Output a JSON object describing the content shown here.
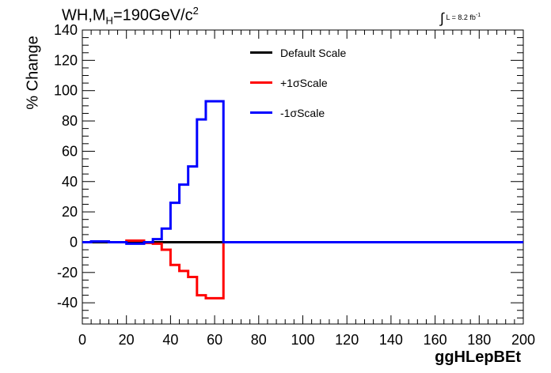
{
  "header": {
    "title_main": "WH,M",
    "title_sub": "H",
    "title_rest": "=190GeV/c",
    "title_sup": "2",
    "lumi_main": "L = 8.2 fb",
    "lumi_sup": "-1"
  },
  "chart_data": {
    "type": "line",
    "xlabel": "ggHLepBEt",
    "ylabel": "% Change",
    "xlim": [
      0,
      200
    ],
    "ylim": [
      -54,
      140
    ],
    "xticks": [
      0,
      20,
      40,
      60,
      80,
      100,
      120,
      140,
      160,
      180,
      200
    ],
    "yticks": [
      -40,
      -20,
      0,
      20,
      40,
      60,
      80,
      100,
      120,
      140
    ],
    "bin_width": 4,
    "bin_edges_start": 0,
    "grid": false,
    "legend_position": "top-center",
    "series": [
      {
        "name": "Default Scale",
        "color": "#000000",
        "values": [
          0,
          0,
          0,
          0,
          0,
          0,
          0,
          0,
          0,
          0,
          0,
          0,
          0,
          0,
          0,
          0,
          0,
          0,
          0,
          0,
          0,
          0,
          0,
          0,
          0,
          0,
          0,
          0,
          0,
          0,
          0,
          0,
          0,
          0,
          0,
          0,
          0,
          0,
          0,
          0,
          0,
          0,
          0,
          0,
          0,
          0,
          0,
          0,
          0,
          0
        ]
      },
      {
        "name": "+1σScale",
        "color": "#ff0000",
        "values": [
          0,
          0.5,
          0.5,
          0,
          0,
          1,
          1,
          -0.5,
          -1,
          -5,
          -15,
          -19,
          -23,
          -35,
          -37,
          -37,
          0,
          0,
          0,
          0,
          0,
          0,
          0,
          0,
          0,
          0,
          0,
          0,
          0,
          0,
          0,
          0,
          0,
          0,
          0,
          0,
          0,
          0,
          0,
          0,
          0,
          0,
          0,
          0,
          0,
          0,
          0,
          0,
          0,
          0
        ]
      },
      {
        "name": "-1σScale",
        "color": "#0000ff",
        "values": [
          0,
          0.5,
          0.5,
          0,
          0,
          -1,
          -1,
          0,
          2,
          9,
          26,
          38,
          50,
          81,
          93,
          93,
          0,
          0,
          0,
          0,
          0,
          0,
          0,
          0,
          0,
          0,
          0,
          0,
          0,
          0,
          0,
          0,
          0,
          0,
          0,
          0,
          0,
          0,
          0,
          0,
          0,
          0,
          0,
          0,
          0,
          0,
          0,
          0,
          0,
          0
        ]
      }
    ]
  }
}
